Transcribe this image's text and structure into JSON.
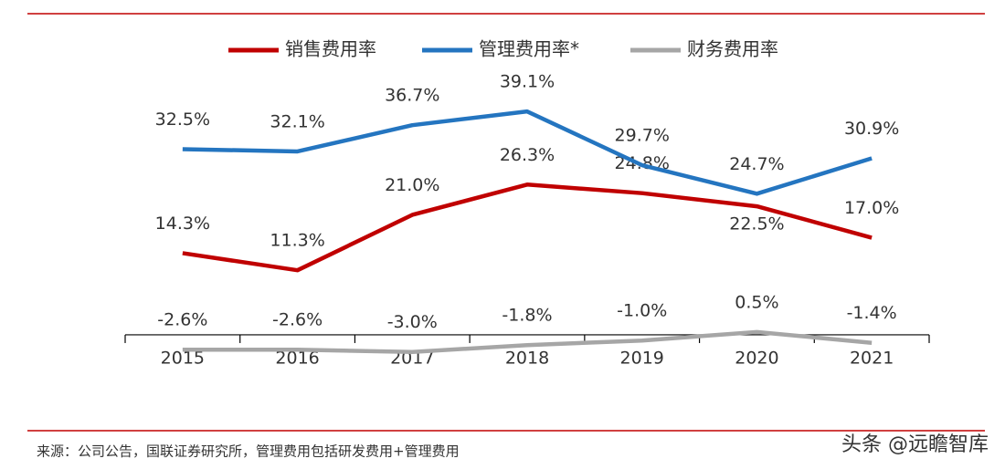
{
  "chart_data": {
    "type": "line",
    "categories": [
      "2015",
      "2016",
      "2017",
      "2018",
      "2019",
      "2020",
      "2021"
    ],
    "series": [
      {
        "name": "销售费用率",
        "color": "#c00000",
        "values": [
          14.3,
          11.3,
          21.0,
          26.3,
          24.8,
          22.5,
          17.0
        ],
        "value_labels": [
          "14.3%",
          "11.3%",
          "21.0%",
          "26.3%",
          "24.8%",
          "22.5%",
          "17.0%"
        ]
      },
      {
        "name": "管理费用率*",
        "color": "#2475c0",
        "values": [
          32.5,
          32.1,
          36.7,
          39.1,
          29.7,
          24.7,
          30.9
        ],
        "value_labels": [
          "32.5%",
          "32.1%",
          "36.7%",
          "39.1%",
          "29.7%",
          "24.7%",
          "30.9%"
        ]
      },
      {
        "name": "财务费用率",
        "color": "#a6a6a6",
        "values": [
          -2.6,
          -2.6,
          -3.0,
          -1.8,
          -1.0,
          0.5,
          -1.4
        ],
        "value_labels": [
          "-2.6%",
          "-2.6%",
          "-3.0%",
          "-1.8%",
          "-1.0%",
          "0.5%",
          "-1.4%"
        ]
      }
    ],
    "ylim": [
      -4,
      42
    ],
    "source": "来源：公司公告，国联证券研究所，管理费用包括研发费用+管理费用",
    "watermark": "头条 @远瞻智库"
  }
}
